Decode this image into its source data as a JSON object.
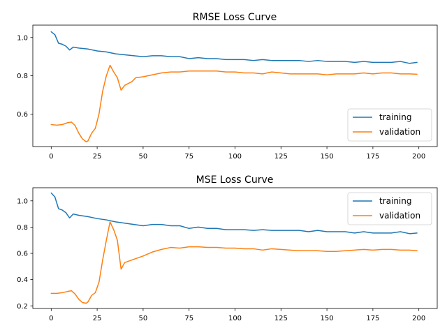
{
  "chart_data": [
    {
      "type": "line",
      "title": "RMSE Loss Curve",
      "xlabel": "",
      "ylabel": "",
      "xlim": [
        -10,
        210
      ],
      "ylim": [
        0.43,
        1.065
      ],
      "xticks": [
        0,
        25,
        50,
        75,
        100,
        125,
        150,
        175,
        200
      ],
      "yticks": [
        0.6,
        0.8,
        1.0
      ],
      "x_tick_labels": [
        "0",
        "25",
        "50",
        "75",
        "100",
        "125",
        "150",
        "175",
        "200"
      ],
      "y_tick_labels": [
        "0.6",
        "0.8",
        "1.0"
      ],
      "grid": false,
      "legend_position": "lower-right",
      "series": [
        {
          "name": "training",
          "color": "#1f77b4",
          "x": [
            0,
            2,
            4,
            6,
            8,
            10,
            12,
            15,
            20,
            25,
            30,
            35,
            40,
            45,
            50,
            55,
            60,
            65,
            70,
            75,
            80,
            85,
            90,
            95,
            100,
            105,
            110,
            115,
            120,
            125,
            130,
            135,
            140,
            145,
            150,
            155,
            160,
            165,
            170,
            175,
            180,
            185,
            190,
            195,
            199
          ],
          "y": [
            1.03,
            1.015,
            0.97,
            0.965,
            0.955,
            0.935,
            0.95,
            0.945,
            0.94,
            0.93,
            0.925,
            0.915,
            0.91,
            0.905,
            0.9,
            0.905,
            0.905,
            0.9,
            0.9,
            0.89,
            0.895,
            0.89,
            0.89,
            0.885,
            0.885,
            0.885,
            0.88,
            0.885,
            0.88,
            0.88,
            0.88,
            0.88,
            0.875,
            0.88,
            0.875,
            0.875,
            0.875,
            0.87,
            0.875,
            0.87,
            0.87,
            0.87,
            0.875,
            0.865,
            0.87
          ]
        },
        {
          "name": "validation",
          "color": "#ff7f0e",
          "x": [
            0,
            3,
            6,
            9,
            11,
            13,
            15,
            17,
            19,
            20,
            22,
            24,
            26,
            28,
            30,
            32,
            34,
            36,
            38,
            40,
            42,
            44,
            46,
            50,
            55,
            60,
            65,
            70,
            75,
            80,
            85,
            90,
            95,
            100,
            105,
            110,
            115,
            120,
            125,
            130,
            135,
            140,
            145,
            150,
            155,
            160,
            165,
            170,
            175,
            180,
            185,
            190,
            195,
            199
          ],
          "y": [
            0.545,
            0.542,
            0.545,
            0.555,
            0.558,
            0.54,
            0.5,
            0.47,
            0.455,
            0.46,
            0.5,
            0.525,
            0.6,
            0.72,
            0.8,
            0.855,
            0.82,
            0.79,
            0.725,
            0.75,
            0.76,
            0.77,
            0.79,
            0.795,
            0.805,
            0.815,
            0.82,
            0.82,
            0.825,
            0.825,
            0.825,
            0.825,
            0.82,
            0.82,
            0.815,
            0.815,
            0.81,
            0.82,
            0.815,
            0.81,
            0.81,
            0.81,
            0.81,
            0.805,
            0.81,
            0.81,
            0.81,
            0.815,
            0.81,
            0.815,
            0.815,
            0.81,
            0.81,
            0.808
          ]
        }
      ]
    },
    {
      "type": "line",
      "title": "MSE Loss Curve",
      "xlabel": "",
      "ylabel": "",
      "xlim": [
        -10,
        210
      ],
      "ylim": [
        0.18,
        1.1
      ],
      "xticks": [
        0,
        25,
        50,
        75,
        100,
        125,
        150,
        175,
        200
      ],
      "yticks": [
        0.2,
        0.4,
        0.6,
        0.8,
        1.0
      ],
      "x_tick_labels": [
        "0",
        "25",
        "50",
        "75",
        "100",
        "125",
        "150",
        "175",
        "200"
      ],
      "y_tick_labels": [
        "0.2",
        "0.4",
        "0.6",
        "0.8",
        "1.0"
      ],
      "grid": false,
      "legend_position": "upper-right",
      "series": [
        {
          "name": "training",
          "color": "#1f77b4",
          "x": [
            0,
            2,
            4,
            6,
            8,
            10,
            12,
            15,
            20,
            25,
            30,
            35,
            40,
            45,
            50,
            55,
            60,
            65,
            70,
            75,
            80,
            85,
            90,
            95,
            100,
            105,
            110,
            115,
            120,
            125,
            130,
            135,
            140,
            145,
            150,
            155,
            160,
            165,
            170,
            175,
            180,
            185,
            190,
            195,
            199
          ],
          "y": [
            1.06,
            1.03,
            0.94,
            0.93,
            0.91,
            0.87,
            0.9,
            0.89,
            0.88,
            0.865,
            0.855,
            0.84,
            0.83,
            0.82,
            0.81,
            0.82,
            0.82,
            0.81,
            0.81,
            0.79,
            0.8,
            0.79,
            0.79,
            0.78,
            0.78,
            0.78,
            0.775,
            0.78,
            0.775,
            0.775,
            0.775,
            0.775,
            0.765,
            0.775,
            0.765,
            0.765,
            0.765,
            0.755,
            0.765,
            0.755,
            0.755,
            0.755,
            0.765,
            0.75,
            0.755
          ]
        },
        {
          "name": "validation",
          "color": "#ff7f0e",
          "x": [
            0,
            3,
            6,
            9,
            11,
            13,
            15,
            17,
            19,
            20,
            22,
            24,
            26,
            28,
            30,
            32,
            34,
            36,
            38,
            40,
            42,
            44,
            46,
            50,
            55,
            60,
            65,
            70,
            75,
            80,
            85,
            90,
            95,
            100,
            105,
            110,
            115,
            120,
            125,
            130,
            135,
            140,
            145,
            150,
            155,
            160,
            165,
            170,
            175,
            180,
            185,
            190,
            195,
            199
          ],
          "y": [
            0.295,
            0.295,
            0.3,
            0.31,
            0.315,
            0.29,
            0.25,
            0.225,
            0.22,
            0.23,
            0.28,
            0.3,
            0.38,
            0.55,
            0.7,
            0.84,
            0.78,
            0.7,
            0.48,
            0.53,
            0.54,
            0.55,
            0.56,
            0.58,
            0.61,
            0.63,
            0.645,
            0.64,
            0.65,
            0.65,
            0.645,
            0.645,
            0.64,
            0.64,
            0.635,
            0.635,
            0.625,
            0.635,
            0.63,
            0.625,
            0.62,
            0.62,
            0.62,
            0.615,
            0.615,
            0.62,
            0.625,
            0.63,
            0.625,
            0.63,
            0.63,
            0.625,
            0.625,
            0.62
          ]
        }
      ]
    }
  ]
}
